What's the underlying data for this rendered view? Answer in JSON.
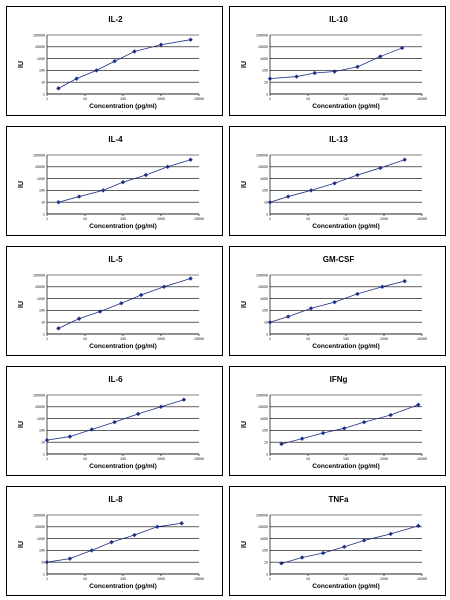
{
  "chart_data": [
    {
      "type": "line",
      "title": "IL-2",
      "xlabel": "Concentration (pg/ml)",
      "ylabel": "IU",
      "xscale": "log",
      "yscale": "log",
      "xlim": [
        1,
        10000
      ],
      "ylim": [
        1,
        100000
      ],
      "xticks": [
        "1",
        "10",
        "100",
        "1000",
        "10000"
      ],
      "yticks": [
        "1",
        "10",
        "100",
        "1000",
        "10000",
        "100000"
      ],
      "grid": "horizontal",
      "color": "#1f2f86",
      "points": [
        [
          2,
          3
        ],
        [
          6,
          20
        ],
        [
          20,
          100
        ],
        [
          60,
          600
        ],
        [
          200,
          4000
        ],
        [
          1000,
          15000
        ],
        [
          6000,
          40000
        ]
      ]
    },
    {
      "type": "line",
      "title": "IL-10",
      "xlabel": "Concentration (pg/ml)",
      "ylabel": "IU",
      "xscale": "log",
      "yscale": "log",
      "xlim": [
        1,
        10000
      ],
      "ylim": [
        1,
        100000
      ],
      "xticks": [
        "1",
        "10",
        "100",
        "1000",
        "10000"
      ],
      "yticks": [
        "1",
        "10",
        "100",
        "1000",
        "10000",
        "100000"
      ],
      "grid": "horizontal",
      "color": "#1f2f86",
      "points": [
        [
          1,
          20
        ],
        [
          5,
          30
        ],
        [
          15,
          60
        ],
        [
          50,
          80
        ],
        [
          200,
          200
        ],
        [
          800,
          1500
        ],
        [
          3000,
          8000
        ]
      ]
    },
    {
      "type": "line",
      "title": "IL-4",
      "xlabel": "Concentration (pg/ml)",
      "ylabel": "IU",
      "xscale": "log",
      "yscale": "log",
      "xlim": [
        1,
        10000
      ],
      "ylim": [
        1,
        100000
      ],
      "xticks": [
        "1",
        "10",
        "100",
        "1000",
        "10000"
      ],
      "yticks": [
        "1",
        "10",
        "100",
        "1000",
        "10000",
        "100000"
      ],
      "grid": "horizontal",
      "color": "#1f2f86",
      "points": [
        [
          2,
          10
        ],
        [
          7,
          30
        ],
        [
          30,
          100
        ],
        [
          100,
          500
        ],
        [
          400,
          2000
        ],
        [
          1500,
          10000
        ],
        [
          6000,
          40000
        ]
      ]
    },
    {
      "type": "line",
      "title": "IL-13",
      "xlabel": "Concentration (pg/ml)",
      "ylabel": "IU",
      "xscale": "log",
      "yscale": "log",
      "xlim": [
        1,
        10000
      ],
      "ylim": [
        1,
        100000
      ],
      "xticks": [
        "1",
        "10",
        "100",
        "1000",
        "10000"
      ],
      "yticks": [
        "1",
        "10",
        "100",
        "1000",
        "10000",
        "100000"
      ],
      "grid": "horizontal",
      "color": "#1f2f86",
      "points": [
        [
          1,
          10
        ],
        [
          3,
          30
        ],
        [
          12,
          100
        ],
        [
          50,
          400
        ],
        [
          200,
          2000
        ],
        [
          800,
          8000
        ],
        [
          3500,
          40000
        ]
      ]
    },
    {
      "type": "line",
      "title": "IL-5",
      "xlabel": "Concentration (pg/ml)",
      "ylabel": "IU",
      "xscale": "log",
      "yscale": "log",
      "xlim": [
        1,
        10000
      ],
      "ylim": [
        1,
        100000
      ],
      "xticks": [
        "1",
        "10",
        "100",
        "1000",
        "10000"
      ],
      "yticks": [
        "1",
        "10",
        "100",
        "1000",
        "10000",
        "100000"
      ],
      "grid": "horizontal",
      "color": "#1f2f86",
      "points": [
        [
          2,
          3
        ],
        [
          7,
          20
        ],
        [
          25,
          80
        ],
        [
          90,
          400
        ],
        [
          300,
          2000
        ],
        [
          1200,
          10000
        ],
        [
          6000,
          50000
        ]
      ]
    },
    {
      "type": "line",
      "title": "GM-CSF",
      "xlabel": "Concentration (pg/ml)",
      "ylabel": "IU",
      "xscale": "log",
      "yscale": "log",
      "xlim": [
        1,
        10000
      ],
      "ylim": [
        1,
        100000
      ],
      "xticks": [
        "1",
        "10",
        "100",
        "1000",
        "10000"
      ],
      "yticks": [
        "1",
        "10",
        "100",
        "1000",
        "10000",
        "100000"
      ],
      "grid": "horizontal",
      "color": "#1f2f86",
      "points": [
        [
          1,
          10
        ],
        [
          3,
          30
        ],
        [
          12,
          150
        ],
        [
          50,
          500
        ],
        [
          200,
          2500
        ],
        [
          900,
          10000
        ],
        [
          3500,
          30000
        ]
      ]
    },
    {
      "type": "line",
      "title": "IL-6",
      "xlabel": "Concentration (pg/ml)",
      "ylabel": "IU",
      "xscale": "log",
      "yscale": "log",
      "xlim": [
        1,
        10000
      ],
      "ylim": [
        1,
        100000
      ],
      "xticks": [
        "1",
        "10",
        "100",
        "1000",
        "10000"
      ],
      "yticks": [
        "1",
        "10",
        "100",
        "1000",
        "10000",
        "100000"
      ],
      "grid": "horizontal",
      "color": "#1f2f86",
      "points": [
        [
          1,
          15
        ],
        [
          4,
          30
        ],
        [
          15,
          120
        ],
        [
          60,
          500
        ],
        [
          250,
          2500
        ],
        [
          1000,
          10000
        ],
        [
          4000,
          40000
        ]
      ]
    },
    {
      "type": "line",
      "title": "IFNg",
      "xlabel": "Concentration (pg/ml)",
      "ylabel": "IU",
      "xscale": "log",
      "yscale": "log",
      "xlim": [
        1,
        10000
      ],
      "ylim": [
        1,
        100000
      ],
      "xticks": [
        "1",
        "10",
        "100",
        "1000",
        "10000"
      ],
      "yticks": [
        "1",
        "10",
        "100",
        "1000",
        "10000",
        "100000"
      ],
      "grid": "horizontal",
      "color": "#1f2f86",
      "points": [
        [
          2,
          7
        ],
        [
          7,
          20
        ],
        [
          25,
          60
        ],
        [
          90,
          150
        ],
        [
          300,
          500
        ],
        [
          1500,
          2000
        ],
        [
          8000,
          15000
        ]
      ]
    },
    {
      "type": "line",
      "title": "IL-8",
      "xlabel": "Concentration (pg/ml)",
      "ylabel": "IU",
      "xscale": "log",
      "yscale": "log",
      "xlim": [
        1,
        10000
      ],
      "ylim": [
        1,
        100000
      ],
      "xticks": [
        "1",
        "10",
        "100",
        "1000",
        "10000"
      ],
      "yticks": [
        "1",
        "10",
        "100",
        "1000",
        "10000",
        "100000"
      ],
      "grid": "horizontal",
      "color": "#1f2f86",
      "points": [
        [
          1,
          10
        ],
        [
          4,
          20
        ],
        [
          15,
          100
        ],
        [
          50,
          500
        ],
        [
          200,
          2000
        ],
        [
          800,
          10000
        ],
        [
          3500,
          20000
        ]
      ]
    },
    {
      "type": "line",
      "title": "TNFa",
      "xlabel": "Concentration (pg/ml)",
      "ylabel": "IU",
      "xscale": "log",
      "yscale": "log",
      "xlim": [
        1,
        10000
      ],
      "ylim": [
        1,
        100000
      ],
      "xticks": [
        "1",
        "10",
        "100",
        "1000",
        "10000"
      ],
      "yticks": [
        "1",
        "10",
        "100",
        "1000",
        "10000",
        "100000"
      ],
      "grid": "horizontal",
      "color": "#1f2f86",
      "points": [
        [
          2,
          8
        ],
        [
          7,
          25
        ],
        [
          25,
          60
        ],
        [
          90,
          200
        ],
        [
          300,
          700
        ],
        [
          1500,
          2500
        ],
        [
          8000,
          12000
        ]
      ]
    }
  ]
}
